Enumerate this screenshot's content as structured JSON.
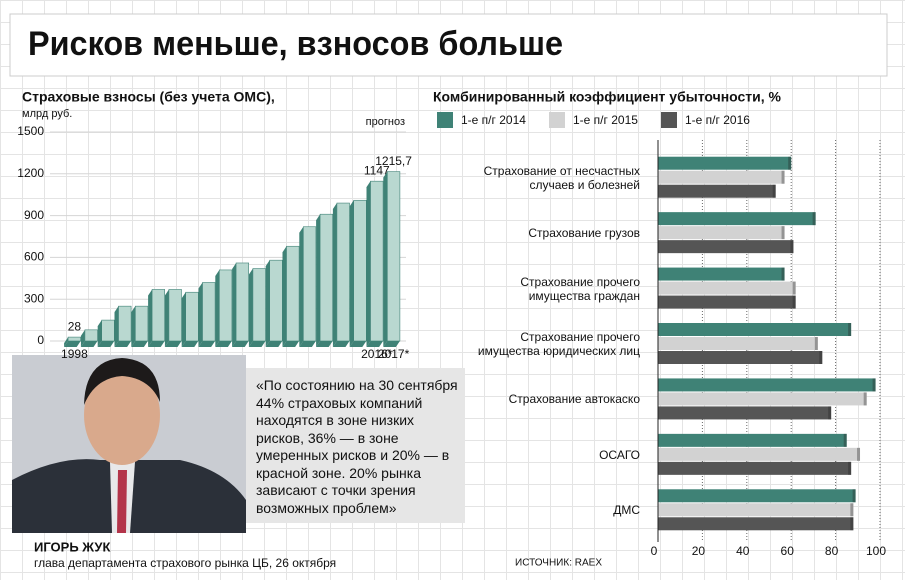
{
  "header": {
    "title": "Рисков меньше, взносов больше"
  },
  "chart_data": [
    {
      "type": "bar",
      "title": "Страховые взносы (без учета ОМС),",
      "y_label": "млрд руб.",
      "annotation": "прогноз",
      "categories": [
        "1998",
        null,
        null,
        null,
        null,
        null,
        null,
        null,
        null,
        null,
        null,
        null,
        null,
        null,
        null,
        null,
        null,
        null,
        "2016*",
        "2017*"
      ],
      "values": [
        28,
        80,
        150,
        250,
        250,
        370,
        370,
        350,
        420,
        510,
        560,
        520,
        580,
        680,
        820,
        910,
        990,
        1010,
        1147,
        1215.7
      ],
      "value_labels": [
        "28",
        null,
        null,
        null,
        null,
        null,
        null,
        null,
        null,
        null,
        null,
        null,
        null,
        null,
        null,
        null,
        null,
        null,
        "1147",
        "1215,7"
      ],
      "color": "#b9d8d0",
      "edge_color": "#3f8276",
      "ylim": [
        0,
        1500
      ],
      "yticks": [
        0,
        300,
        600,
        900,
        1200,
        1500
      ],
      "grid": true
    },
    {
      "type": "hbar",
      "title": "Комбинированный коэффициент убыточности, %",
      "categories": [
        "Страхование от несчастных случаев и болезней",
        "Страхование грузов",
        "Страхование прочего имущества граждан",
        "Страхование прочего имущества юридических лиц",
        "Страхование автокаско",
        "ОСАГО",
        "ДМС"
      ],
      "series": [
        {
          "name": "1-е п/г 2014",
          "color": "#3f8276",
          "values": [
            60,
            71,
            57,
            87,
            98,
            85,
            89
          ]
        },
        {
          "name": "1-е п/г 2015",
          "color": "#d2d2d2",
          "values": [
            57,
            57,
            62,
            72,
            94,
            91,
            88
          ]
        },
        {
          "name": "1-е п/г 2016",
          "color": "#555555",
          "values": [
            53,
            61,
            62,
            74,
            78,
            87,
            88
          ]
        }
      ],
      "xlim": [
        0,
        100
      ],
      "xticks": [
        0,
        20,
        40,
        60,
        80,
        100
      ],
      "grid": true
    }
  ],
  "quote": {
    "text": "«По состоянию на 30 сентября 44% страховых компаний находятся в зоне низких рисков, 36% — в зоне умеренных рисков и 20% — в красной зоне. 20% рынка зависают с точки зрения возможных проблем»",
    "name": "ИГОРЬ ЖУК",
    "role": "глава департамента страхового рынка ЦБ, 26 октября"
  },
  "source": "ИСТОЧНИК: RAEX"
}
